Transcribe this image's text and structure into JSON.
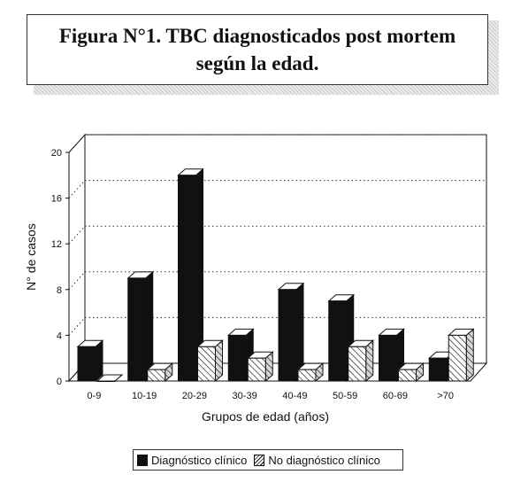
{
  "figure": {
    "title": "Figura N°1. TBC diagnosticados post mortem según la edad."
  },
  "chart_data": {
    "type": "bar",
    "title": "Figura N°1. TBC diagnosticados post mortem según la edad.",
    "xlabel": "Grupos de edad (años)",
    "ylabel": "N° de casos",
    "ylim": [
      0,
      20
    ],
    "yticks": [
      0,
      4,
      8,
      12,
      16,
      20
    ],
    "grid": true,
    "legend_position": "bottom",
    "categories": [
      "0-9",
      "10-19",
      "20-29",
      "30-39",
      "40-49",
      "50-59",
      "60-69",
      ">70"
    ],
    "series": [
      {
        "name": "Diagnóstico clínico",
        "values": [
          3,
          9,
          18,
          4,
          8,
          7,
          4,
          2
        ],
        "color": "#111111"
      },
      {
        "name": "No diagnóstico clínico",
        "values": [
          0,
          1,
          3,
          2,
          1,
          3,
          1,
          4
        ],
        "color": "hatched"
      }
    ]
  }
}
